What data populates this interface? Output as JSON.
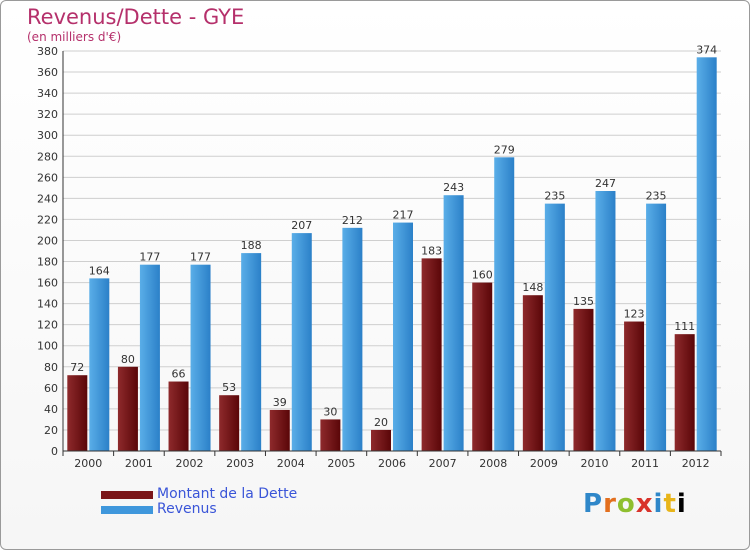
{
  "header": {
    "title": "Revenus/Dette - GYE",
    "subtitle": "(en milliers d'€)"
  },
  "colors": {
    "dette": "#7b1518",
    "revenus": "#3f97dc",
    "title": "#b5306b",
    "grid": "#cfcfcf"
  },
  "legend": {
    "dette_label": "Montant de la Dette",
    "revenus_label": "Revenus"
  },
  "logo": {
    "letters": [
      "P",
      "r",
      "o",
      "x",
      "i",
      "t",
      "i"
    ]
  },
  "chart_data": {
    "type": "bar",
    "title": "Revenus/Dette - GYE",
    "ylabel": "(en milliers d'€)",
    "xlabel": "",
    "ylim": [
      0,
      380
    ],
    "ytick_step": 20,
    "grid": true,
    "legend_position": "bottom-left",
    "categories": [
      "2000",
      "2001",
      "2002",
      "2003",
      "2004",
      "2005",
      "2006",
      "2007",
      "2008",
      "2009",
      "2010",
      "2011",
      "2012"
    ],
    "series": [
      {
        "name": "Montant de la Dette",
        "values": [
          72,
          80,
          66,
          53,
          39,
          30,
          20,
          183,
          160,
          148,
          135,
          123,
          111
        ]
      },
      {
        "name": "Revenus",
        "values": [
          164,
          177,
          177,
          188,
          207,
          212,
          217,
          243,
          279,
          235,
          247,
          235,
          374
        ]
      }
    ]
  }
}
